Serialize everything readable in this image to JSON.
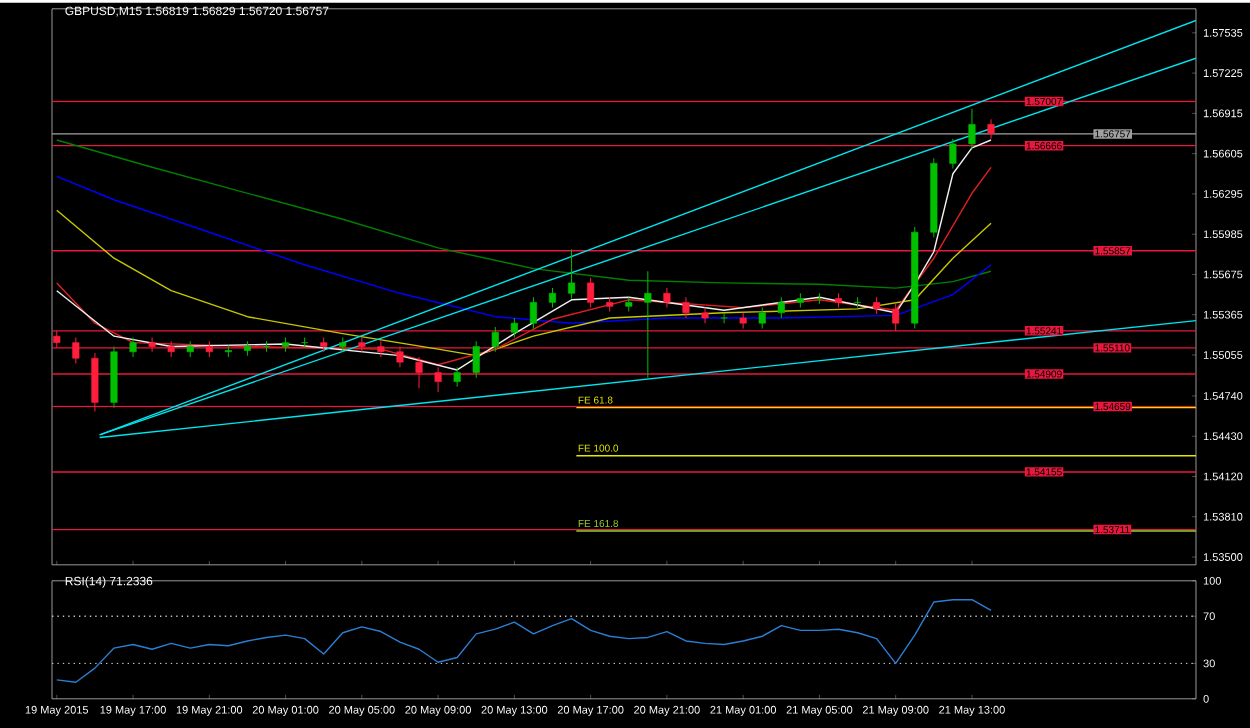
{
  "chart_data": [
    {
      "type": "candlestick",
      "title": "GBPUSD,M15  1.56819 1.56829 1.56720 1.56757",
      "x": [
        "2015-05-19T13:00",
        "2015-05-19T14:00",
        "2015-05-19T15:00",
        "2015-05-19T16:00",
        "2015-05-19T17:00",
        "2015-05-19T18:00",
        "2015-05-19T19:00",
        "2015-05-19T20:00",
        "2015-05-19T21:00",
        "2015-05-19T22:00",
        "2015-05-19T23:00",
        "2015-05-20T00:00",
        "2015-05-20T01:00",
        "2015-05-20T02:00",
        "2015-05-20T03:00",
        "2015-05-20T04:00",
        "2015-05-20T05:00",
        "2015-05-20T06:00",
        "2015-05-20T07:00",
        "2015-05-20T08:00",
        "2015-05-20T09:00",
        "2015-05-20T10:00",
        "2015-05-20T11:00",
        "2015-05-20T12:00",
        "2015-05-20T13:00",
        "2015-05-20T14:00",
        "2015-05-20T15:00",
        "2015-05-20T16:00",
        "2015-05-20T17:00",
        "2015-05-20T18:00",
        "2015-05-20T19:00",
        "2015-05-20T20:00",
        "2015-05-20T21:00",
        "2015-05-20T22:00",
        "2015-05-20T23:00",
        "2015-05-21T00:00",
        "2015-05-21T01:00",
        "2015-05-21T02:00",
        "2015-05-21T03:00",
        "2015-05-21T04:00",
        "2015-05-21T05:00",
        "2015-05-21T06:00",
        "2015-05-21T07:00",
        "2015-05-21T08:00",
        "2015-05-21T09:00",
        "2015-05-21T10:00",
        "2015-05-21T11:00",
        "2015-05-21T12:00",
        "2015-05-21T13:00",
        "2015-05-21T14:00"
      ],
      "ohlc": [
        [
          1.552,
          1.5524,
          1.5511,
          1.5515
        ],
        [
          1.5515,
          1.5519,
          1.5499,
          1.5503
        ],
        [
          1.5503,
          1.5507,
          1.5462,
          1.5469
        ],
        [
          1.5469,
          1.5512,
          1.5465,
          1.5508
        ],
        [
          1.5508,
          1.5519,
          1.5504,
          1.5515
        ],
        [
          1.5515,
          1.5519,
          1.5508,
          1.5512
        ],
        [
          1.5512,
          1.5516,
          1.5504,
          1.5508
        ],
        [
          1.5508,
          1.5516,
          1.5504,
          1.5512
        ],
        [
          1.5512,
          1.5516,
          1.5504,
          1.5508
        ],
        [
          1.5508,
          1.5513,
          1.5504,
          1.5509
        ],
        [
          1.5509,
          1.5516,
          1.5505,
          1.5512
        ],
        [
          1.5512,
          1.5516,
          1.5508,
          1.5512
        ],
        [
          1.5512,
          1.5519,
          1.5508,
          1.5515
        ],
        [
          1.5515,
          1.5519,
          1.5511,
          1.5515
        ],
        [
          1.5515,
          1.5519,
          1.5508,
          1.5512
        ],
        [
          1.5512,
          1.5519,
          1.5508,
          1.5515
        ],
        [
          1.5515,
          1.5519,
          1.5508,
          1.5512
        ],
        [
          1.5512,
          1.5516,
          1.5504,
          1.5508
        ],
        [
          1.5508,
          1.5512,
          1.5496,
          1.55
        ],
        [
          1.55,
          1.5504,
          1.548,
          1.5492
        ],
        [
          1.5492,
          1.5496,
          1.5477,
          1.5485
        ],
        [
          1.5485,
          1.5496,
          1.5481,
          1.5492
        ],
        [
          1.5492,
          1.5516,
          1.5488,
          1.5512
        ],
        [
          1.5512,
          1.5527,
          1.5508,
          1.5523
        ],
        [
          1.5523,
          1.5534,
          1.5519,
          1.553
        ],
        [
          1.553,
          1.555,
          1.5526,
          1.5546
        ],
        [
          1.5546,
          1.5557,
          1.5542,
          1.5553
        ],
        [
          1.5553,
          1.5587,
          1.5549,
          1.5561
        ],
        [
          1.5561,
          1.5565,
          1.5542,
          1.5546
        ],
        [
          1.5546,
          1.555,
          1.5539,
          1.5543
        ],
        [
          1.5543,
          1.555,
          1.5539,
          1.5546
        ],
        [
          1.5546,
          1.557,
          1.5488,
          1.5553
        ],
        [
          1.5553,
          1.5557,
          1.5542,
          1.5546
        ],
        [
          1.5546,
          1.555,
          1.5534,
          1.5538
        ],
        [
          1.5538,
          1.5542,
          1.553,
          1.5534
        ],
        [
          1.5534,
          1.5538,
          1.553,
          1.5534
        ],
        [
          1.5534,
          1.5538,
          1.5526,
          1.553
        ],
        [
          1.553,
          1.5542,
          1.5526,
          1.5538
        ],
        [
          1.5538,
          1.555,
          1.5534,
          1.5546
        ],
        [
          1.5546,
          1.5553,
          1.5542,
          1.5549
        ],
        [
          1.5549,
          1.5553,
          1.5545,
          1.5549
        ],
        [
          1.5549,
          1.5553,
          1.5542,
          1.5546
        ],
        [
          1.5546,
          1.555,
          1.5542,
          1.5546
        ],
        [
          1.5546,
          1.555,
          1.5537,
          1.5541
        ],
        [
          1.5541,
          1.5545,
          1.5524,
          1.553
        ],
        [
          1.553,
          1.5604,
          1.5526,
          1.56
        ],
        [
          1.56,
          1.5657,
          1.5596,
          1.5653
        ],
        [
          1.5653,
          1.5672,
          1.5649,
          1.5668
        ],
        [
          1.5668,
          1.5695,
          1.5664,
          1.5683
        ],
        [
          1.5683,
          1.5687,
          1.5672,
          1.5676
        ]
      ],
      "series": [
        {
          "type": "line",
          "color": "#008000",
          "x": [
            "2015-05-19T13:00",
            "2015-05-19T18:00",
            "2015-05-19T23:00",
            "2015-05-20T04:00",
            "2015-05-20T09:00",
            "2015-05-20T14:00",
            "2015-05-20T19:00",
            "2015-05-21T00:00",
            "2015-05-21T05:00",
            "2015-05-21T09:00",
            "2015-05-21T12:00",
            "2015-05-21T14:00"
          ],
          "values": [
            1.5671,
            1.565,
            1.563,
            1.561,
            1.5588,
            1.5572,
            1.5563,
            1.5561,
            1.556,
            1.5557,
            1.5562,
            1.557
          ]
        },
        {
          "type": "line",
          "color": "#0000ff",
          "x": [
            "2015-05-19T13:00",
            "2015-05-19T16:00",
            "2015-05-19T21:00",
            "2015-05-20T02:00",
            "2015-05-20T07:00",
            "2015-05-20T12:00",
            "2015-05-20T16:00",
            "2015-05-20T21:00",
            "2015-05-21T03:00",
            "2015-05-21T09:00",
            "2015-05-21T12:00",
            "2015-05-21T14:00"
          ],
          "values": [
            1.5643,
            1.5625,
            1.56,
            1.5575,
            1.5553,
            1.5535,
            1.553,
            1.5534,
            1.5534,
            1.5536,
            1.5552,
            1.5575
          ]
        },
        {
          "type": "line",
          "color": "#c8c800",
          "x": [
            "2015-05-19T13:00",
            "2015-05-19T16:00",
            "2015-05-19T19:00",
            "2015-05-19T23:00",
            "2015-05-20T04:00",
            "2015-05-20T09:00",
            "2015-05-20T11:00",
            "2015-05-20T14:00",
            "2015-05-20T18:00",
            "2015-05-21T00:00",
            "2015-05-21T07:00",
            "2015-05-21T10:00",
            "2015-05-21T12:00",
            "2015-05-21T14:00"
          ],
          "values": [
            1.5617,
            1.558,
            1.5555,
            1.5535,
            1.5522,
            1.551,
            1.5505,
            1.552,
            1.5534,
            1.5538,
            1.5541,
            1.5548,
            1.558,
            1.5607
          ]
        },
        {
          "type": "line",
          "color": "#e02020",
          "x": [
            "2015-05-19T13:00",
            "2015-05-19T15:00",
            "2015-05-19T17:00",
            "2015-05-19T23:00",
            "2015-05-20T06:00",
            "2015-05-20T09:00",
            "2015-05-20T12:00",
            "2015-05-20T15:00",
            "2015-05-20T19:00",
            "2015-05-21T01:00",
            "2015-05-21T05:00",
            "2015-05-21T09:00",
            "2015-05-21T11:00",
            "2015-05-21T13:00",
            "2015-05-21T14:00"
          ],
          "values": [
            1.5561,
            1.553,
            1.5515,
            1.5512,
            1.551,
            1.5498,
            1.551,
            1.5533,
            1.5548,
            1.5542,
            1.5548,
            1.554,
            1.558,
            1.563,
            1.565
          ]
        },
        {
          "type": "line",
          "color": "#f0f0f0",
          "x": [
            "2015-05-19T13:00",
            "2015-05-19T16:00",
            "2015-05-19T19:00",
            "2015-05-20T01:00",
            "2015-05-20T07:00",
            "2015-05-20T10:00",
            "2015-05-20T13:00",
            "2015-05-20T16:00",
            "2015-05-20T19:00",
            "2015-05-21T00:00",
            "2015-05-21T05:00",
            "2015-05-21T09:00",
            "2015-05-21T10:00",
            "2015-05-21T11:00",
            "2015-05-21T12:00",
            "2015-05-21T13:00",
            "2015-05-21T14:00"
          ],
          "values": [
            1.5555,
            1.552,
            1.5512,
            1.5514,
            1.5505,
            1.5494,
            1.5522,
            1.5548,
            1.555,
            1.554,
            1.555,
            1.5538,
            1.556,
            1.5585,
            1.5645,
            1.5665,
            1.5671
          ]
        },
        {
          "type": "line",
          "color": "#00e5ee",
          "x": [
            "2015-05-19T15:15",
            "2015-05-22T00:45"
          ],
          "values": [
            1.5444,
            1.5763
          ]
        },
        {
          "type": "line",
          "color": "#00e5ee",
          "x": [
            "2015-05-19T15:15",
            "2015-05-22T00:45"
          ],
          "values": [
            1.5444,
            1.5734
          ]
        },
        {
          "type": "line",
          "color": "#00e5ee",
          "x": [
            "2015-05-19T15:15",
            "2015-05-22T00:45"
          ],
          "values": [
            1.5442,
            1.5532
          ]
        },
        {
          "type": "line",
          "name": "FE 61.8",
          "color": "#e6e600",
          "x": [
            "2015-05-20T16:15",
            "2015-05-22T00:45"
          ],
          "values": [
            1.5465,
            1.5465
          ]
        },
        {
          "type": "line",
          "name": "FE 100.0",
          "color": "#e6e600",
          "x": [
            "2015-05-20T16:15",
            "2015-05-22T00:45"
          ],
          "values": [
            1.5428,
            1.5428
          ]
        },
        {
          "type": "line",
          "name": "FE 161.8",
          "color": "#9acd32",
          "x": [
            "2015-05-20T16:15",
            "2015-05-22T00:45"
          ],
          "values": [
            1.537,
            1.537
          ]
        }
      ],
      "ref_lines": [
        {
          "axis": "y",
          "value": 1.57007,
          "label": "1.57007",
          "color": "#e8173e"
        },
        {
          "axis": "y",
          "value": 1.56757,
          "label": "1.56757",
          "color": "#a0a0a0"
        },
        {
          "axis": "y",
          "value": 1.56666,
          "label": "1.56666",
          "color": "#e8173e"
        },
        {
          "axis": "y",
          "value": 1.55857,
          "label": "1.55857",
          "color": "#e8173e"
        },
        {
          "axis": "y",
          "value": 1.55241,
          "label": "1.55241",
          "color": "#e8173e"
        },
        {
          "axis": "y",
          "value": 1.5511,
          "label": "1.55110",
          "color": "#e8173e"
        },
        {
          "axis": "y",
          "value": 1.54909,
          "label": "1.54909",
          "color": "#e8173e"
        },
        {
          "axis": "y",
          "value": 1.54659,
          "label": "1.54659",
          "color": "#e8173e"
        },
        {
          "axis": "y",
          "value": 1.54155,
          "label": "1.54155",
          "color": "#e8173e"
        },
        {
          "axis": "y",
          "value": 1.53711,
          "label": "1.53711",
          "color": "#e8173e"
        }
      ],
      "xlim": [
        "2015-05-19T12:45",
        "2015-05-22T00:45"
      ],
      "xticks": [
        {
          "value": "2015-05-19T13:00",
          "label": null
        },
        {
          "value": "2015-05-19T17:00",
          "label": null
        },
        {
          "value": "2015-05-19T21:00",
          "label": null
        },
        {
          "value": "2015-05-20T01:00",
          "label": null
        },
        {
          "value": "2015-05-20T05:00",
          "label": null
        },
        {
          "value": "2015-05-20T09:00",
          "label": null
        },
        {
          "value": "2015-05-20T13:00",
          "label": null
        },
        {
          "value": "2015-05-20T17:00",
          "label": null
        },
        {
          "value": "2015-05-20T21:00",
          "label": null
        },
        {
          "value": "2015-05-21T01:00",
          "label": null
        },
        {
          "value": "2015-05-21T05:00",
          "label": null
        },
        {
          "value": "2015-05-21T09:00",
          "label": null
        },
        {
          "value": "2015-05-21T13:00",
          "label": null
        }
      ],
      "ylim": [
        1.5344,
        1.5772
      ],
      "yticks": [
        1.57535,
        1.57225,
        1.56915,
        1.56605,
        1.56295,
        1.55985,
        1.55675,
        1.55365,
        1.55055,
        {
          "value": 1.5474,
          "label": "1.54740"
        },
        {
          "value": 1.5443,
          "label": "1.54430"
        },
        {
          "value": 1.5412,
          "label": "1.54120"
        },
        {
          "value": 1.5381,
          "label": "1.53810"
        },
        {
          "value": 1.535,
          "label": "1.53500"
        }
      ],
      "tick_labels": "y",
      "marker": "none"
    },
    {
      "type": "line",
      "title": "RSI(14) 71.2336",
      "x": [
        "2015-05-19T13:00",
        "2015-05-19T14:00",
        "2015-05-19T15:00",
        "2015-05-19T16:00",
        "2015-05-19T17:00",
        "2015-05-19T18:00",
        "2015-05-19T19:00",
        "2015-05-19T20:00",
        "2015-05-19T21:00",
        "2015-05-19T22:00",
        "2015-05-19T23:00",
        "2015-05-20T00:00",
        "2015-05-20T01:00",
        "2015-05-20T02:00",
        "2015-05-20T03:00",
        "2015-05-20T04:00",
        "2015-05-20T05:00",
        "2015-05-20T06:00",
        "2015-05-20T07:00",
        "2015-05-20T08:00",
        "2015-05-20T09:00",
        "2015-05-20T10:00",
        "2015-05-20T11:00",
        "2015-05-20T12:00",
        "2015-05-20T13:00",
        "2015-05-20T14:00",
        "2015-05-20T15:00",
        "2015-05-20T16:00",
        "2015-05-20T17:00",
        "2015-05-20T18:00",
        "2015-05-20T19:00",
        "2015-05-20T20:00",
        "2015-05-20T21:00",
        "2015-05-20T22:00",
        "2015-05-20T23:00",
        "2015-05-21T00:00",
        "2015-05-21T01:00",
        "2015-05-21T02:00",
        "2015-05-21T03:00",
        "2015-05-21T04:00",
        "2015-05-21T05:00",
        "2015-05-21T06:00",
        "2015-05-21T07:00",
        "2015-05-21T08:00",
        "2015-05-21T09:00",
        "2015-05-21T10:00",
        "2015-05-21T11:00",
        "2015-05-21T12:00",
        "2015-05-21T13:00",
        "2015-05-21T14:00"
      ],
      "series": [
        {
          "color": "#2a7fd4",
          "values": [
            16,
            14,
            26,
            43,
            46,
            42,
            47,
            43,
            46,
            45,
            49,
            52,
            54,
            51,
            38,
            56,
            61,
            57,
            48,
            42,
            31,
            35,
            55,
            59,
            65,
            55,
            62,
            68,
            58,
            53,
            51,
            52,
            57,
            49,
            47,
            46,
            49,
            53,
            62,
            58,
            58,
            59,
            56,
            51,
            30,
            54,
            82,
            84,
            84,
            75
          ]
        }
      ],
      "ref_lines": [
        {
          "axis": "y",
          "value": 70,
          "color": "#c0c0c0",
          "line_style": "dotted"
        },
        {
          "axis": "y",
          "value": 30,
          "color": "#c0c0c0",
          "line_style": "dotted"
        }
      ],
      "xlim": [
        "2015-05-19T12:45",
        "2015-05-22T00:45"
      ],
      "xticks": [
        {
          "value": "2015-05-19T13:00",
          "label": "19 May 2015"
        },
        {
          "value": "2015-05-19T17:00",
          "label": "19 May 17:00"
        },
        {
          "value": "2015-05-19T21:00",
          "label": "19 May 21:00"
        },
        {
          "value": "2015-05-20T01:00",
          "label": "20 May 01:00"
        },
        {
          "value": "2015-05-20T05:00",
          "label": "20 May 05:00"
        },
        {
          "value": "2015-05-20T09:00",
          "label": "20 May 09:00"
        },
        {
          "value": "2015-05-20T13:00",
          "label": "20 May 13:00"
        },
        {
          "value": "2015-05-20T17:00",
          "label": "20 May 17:00"
        },
        {
          "value": "2015-05-20T21:00",
          "label": "20 May 21:00"
        },
        {
          "value": "2015-05-21T01:00",
          "label": "21 May 01:00"
        },
        {
          "value": "2015-05-21T05:00",
          "label": "21 May 05:00"
        },
        {
          "value": "2015-05-21T09:00",
          "label": "21 May 09:00"
        },
        {
          "value": "2015-05-21T13:00",
          "label": "21 May 13:00"
        }
      ],
      "ylim": [
        0,
        100
      ],
      "yticks": [
        0,
        30,
        70,
        100
      ],
      "marker": "none"
    }
  ]
}
